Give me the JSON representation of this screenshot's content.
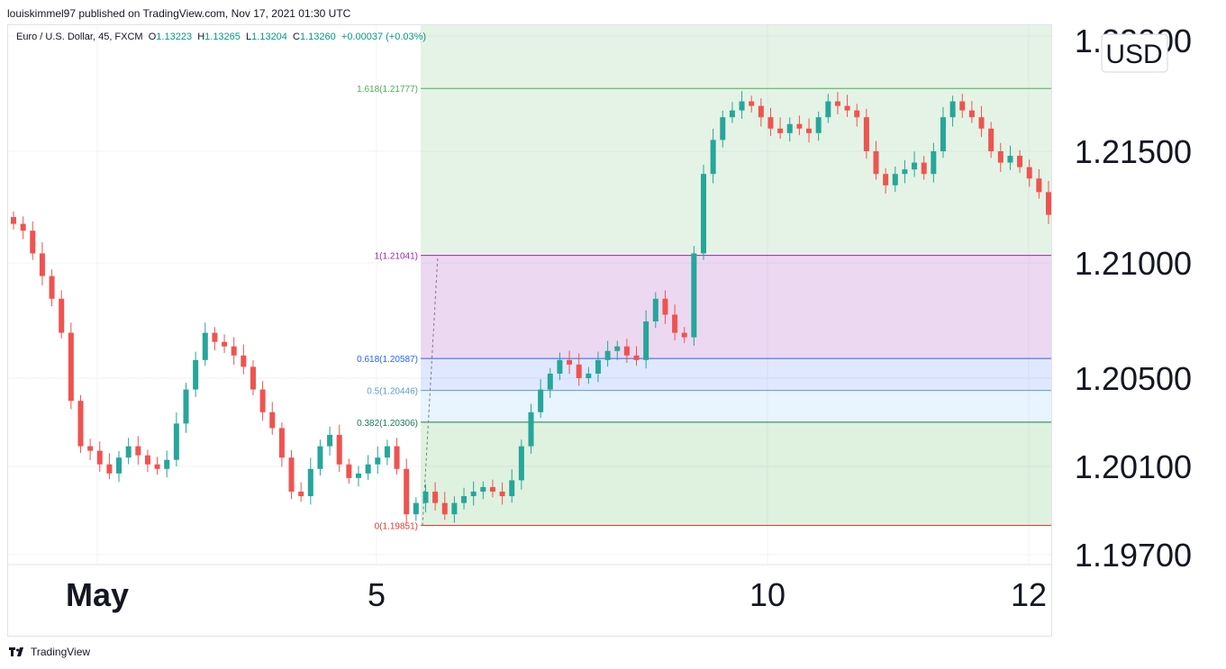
{
  "header": {
    "published": "louiskimmel97 published on TradingView.com, Nov 17, 2021 01:30 UTC"
  },
  "symbol": {
    "name": "Euro / U.S. Dollar, 45, FXCM",
    "open_label": "O",
    "open": "1.13223",
    "high_label": "H",
    "high": "1.13265",
    "low_label": "L",
    "low": "1.13204",
    "close_label": "C",
    "close": "1.13260",
    "change": "+0.00037 (+0.03%)"
  },
  "price_axis": {
    "currency": "USD",
    "ticks": [
      "1.22000",
      "1.21500",
      "1.21000",
      "1.20500",
      "1.20100",
      "1.19700"
    ]
  },
  "time_axis": {
    "ticks": [
      "May",
      "5",
      "10",
      "12"
    ]
  },
  "fib_levels": [
    {
      "ratio": "1.618",
      "label": "1.618(1.21777)",
      "price": 1.21777,
      "color": "#4caf50"
    },
    {
      "ratio": "1",
      "label": "1(1.21041)",
      "price": 1.21041,
      "color": "#9c27b0"
    },
    {
      "ratio": "0.618",
      "label": "0.618(1.20587)",
      "price": 1.20587,
      "color": "#2962ff"
    },
    {
      "ratio": "0.5",
      "label": "0.5(1.20446)",
      "price": 1.20446,
      "color": "#5c9fcf"
    },
    {
      "ratio": "0.382",
      "label": "0.382(1.20306)",
      "price": 1.20306,
      "color": "#1b7a5a"
    },
    {
      "ratio": "0",
      "label": "0(1.19851)",
      "price": 1.19851,
      "color": "#e53935"
    }
  ],
  "footer": {
    "brand": "TradingView"
  },
  "chart_data": {
    "type": "candlestick",
    "title": "Euro / U.S. Dollar, 45, FXCM",
    "ylabel": "USD",
    "ylim": [
      1.1965,
      1.2205
    ],
    "x_ticks": [
      "May",
      "5",
      "10",
      "12"
    ],
    "close_path": [
      1.2118,
      1.2115,
      1.2105,
      1.2095,
      1.2085,
      1.207,
      1.204,
      1.202,
      1.2018,
      1.2012,
      1.2008,
      1.2015,
      1.202,
      1.2016,
      1.2012,
      1.201,
      1.2014,
      1.203,
      1.2045,
      1.2058,
      1.207,
      1.2066,
      1.2064,
      1.206,
      1.2055,
      1.2045,
      1.2035,
      1.2028,
      1.2015,
      1.2,
      1.1998,
      1.201,
      1.202,
      1.2025,
      1.2012,
      1.2006,
      1.2008,
      1.2012,
      1.2015,
      1.202,
      1.201,
      1.199,
      1.1995,
      1.2,
      1.1995,
      1.199,
      1.1995,
      1.1998,
      1.2,
      1.2002,
      1.2,
      1.1998,
      1.2005,
      1.202,
      1.2035,
      1.2045,
      1.2052,
      1.2058,
      1.2056,
      1.205,
      1.2052,
      1.2058,
      1.2062,
      1.2064,
      1.206,
      1.2058,
      1.2075,
      1.2085,
      1.2078,
      1.207,
      1.2068,
      1.2105,
      1.214,
      1.2155,
      1.2165,
      1.2168,
      1.2172,
      1.217,
      1.2165,
      1.216,
      1.2158,
      1.2162,
      1.216,
      1.2158,
      1.2165,
      1.2172,
      1.217,
      1.2168,
      1.2165,
      1.215,
      1.214,
      1.2135,
      1.214,
      1.2142,
      1.2145,
      1.214,
      1.215,
      1.2165,
      1.2172,
      1.2168,
      1.2165,
      1.216,
      1.215,
      1.2145,
      1.2148,
      1.2143,
      1.2138,
      1.2132,
      1.2122
    ]
  }
}
